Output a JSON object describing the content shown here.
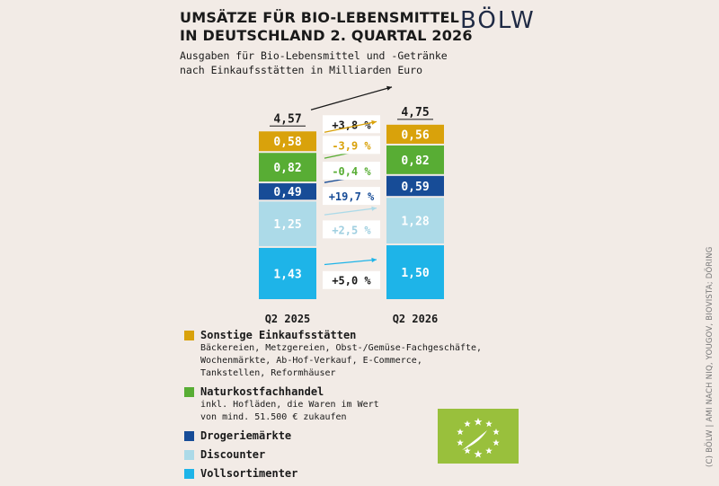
{
  "header": {
    "title_line1": "UMSÄTZE FÜR BIO-LEBENSMITTEL",
    "title_line2": "IN DEUTSCHLAND 2. QUARTAL 2026",
    "subtitle_line1": "Ausgaben für Bio-Lebensmittel und -Getränke",
    "subtitle_line2": "nach Einkaufsstätten in Milliarden Euro",
    "logo": "BÖLW"
  },
  "chart_data": {
    "type": "bar",
    "stacked": true,
    "categories": [
      "Q2 2025",
      "Q2 2026"
    ],
    "totals": [
      "4,57",
      "4,75"
    ],
    "total_change": "+3,8 %",
    "series": [
      {
        "name": "Vollsortimenter",
        "values": [
          1.43,
          1.5
        ],
        "labels": [
          "1,43",
          "1,50"
        ],
        "change": "+5,0 %",
        "color": "#1eb4e8",
        "text_color": "#ffffff",
        "change_color": "#1a1a1a",
        "arrow_color": "#1eb4e8"
      },
      {
        "name": "Discounter",
        "values": [
          1.25,
          1.28
        ],
        "labels": [
          "1,25",
          "1,28"
        ],
        "change": "+2,5 %",
        "color": "#acdae8",
        "text_color": "#ffffff",
        "change_color": "#9fcfe0",
        "arrow_color": "#acdae8"
      },
      {
        "name": "Drogeriemärkte",
        "values": [
          0.49,
          0.59
        ],
        "labels": [
          "0,49",
          "0,59"
        ],
        "change": "+19,7 %",
        "color": "#174c97",
        "text_color": "#ffffff",
        "change_color": "#174c97",
        "arrow_color": "#174c97"
      },
      {
        "name": "Naturkostfachhandel",
        "values": [
          0.82,
          0.82
        ],
        "labels": [
          "0,82",
          "0,82"
        ],
        "change": "-0,4 %",
        "color": "#58ad34",
        "text_color": "#ffffff",
        "change_color": "#58ad34",
        "arrow_color": "#58ad34"
      },
      {
        "name": "Sonstige Einkaufsstätten",
        "values": [
          0.58,
          0.56
        ],
        "labels": [
          "0,58",
          "0,56"
        ],
        "change": "-3,9 %",
        "color": "#d9a20b",
        "text_color": "#ffffff",
        "change_color": "#d9a20b",
        "arrow_color": "#d9a20b"
      }
    ]
  },
  "legend": [
    {
      "label": "Sonstige Einkaufsstätten",
      "color": "#d9a20b",
      "note": [
        "Bäckereien, Metzgereien, Obst-/Gemüse-Fachgeschäfte,",
        "Wochenmärkte, Ab-Hof-Verkauf, E-Commerce,",
        "Tankstellen, Reformhäuser"
      ]
    },
    {
      "label": "Naturkostfachhandel",
      "color": "#58ad34",
      "note": [
        "inkl. Hofläden, die Waren im Wert",
        "von mind. 51.500 € zukaufen"
      ]
    },
    {
      "label": "Drogeriemärkte",
      "color": "#174c97",
      "note": []
    },
    {
      "label": "Discounter",
      "color": "#acdae8",
      "note": []
    },
    {
      "label": "Vollsortimenter",
      "color": "#1eb4e8",
      "note": []
    }
  ],
  "credit": "(C) BÖLW | AMI NACH NIQ, YOUGOV, BIOVISTA; DÖRING"
}
